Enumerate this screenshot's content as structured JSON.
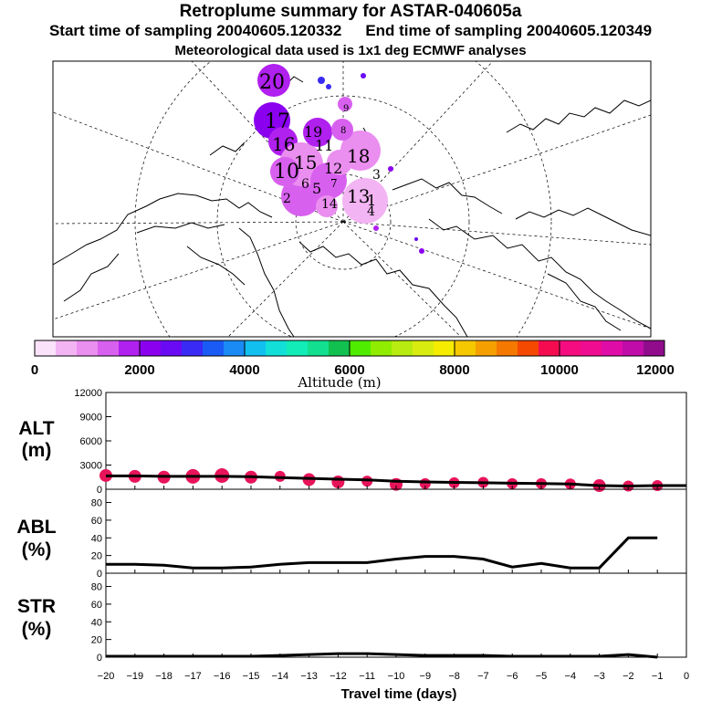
{
  "title": "Retroplume summary for ASTAR-040605a",
  "start_label": "Start time of sampling 20040605.120332",
  "end_label": "End time of sampling 20040605.120349",
  "met_label": "Meteorological data used is 1x1 deg ECMWF analyses",
  "colorbar": {
    "label": "Altitude (m)",
    "ticks": [
      "0",
      "2000",
      "4000",
      "6000",
      "8000",
      "10000",
      "12000"
    ],
    "colors": [
      "#fbe2fb",
      "#f3b4f3",
      "#ea8eef",
      "#d860ef",
      "#b020ef",
      "#8a00ef",
      "#6a0af5",
      "#3a2af5",
      "#1a5af5",
      "#1a8af5",
      "#12c0f0",
      "#12e0d8",
      "#12ecb8",
      "#12e090",
      "#12c050",
      "#50ec00",
      "#90ec00",
      "#b8ec10",
      "#d8ec10",
      "#f5ec00",
      "#f5c800",
      "#f5a000",
      "#f57800",
      "#f54800",
      "#f50c50",
      "#f50c80",
      "#f00c90",
      "#e00ca8",
      "#c00ca8",
      "#900c8c"
    ]
  },
  "map": {
    "plume_labels": [
      "20",
      "17",
      "16",
      "15",
      "10",
      "19",
      "12",
      "11",
      "18",
      "13",
      "14",
      "8",
      "9",
      "7",
      "6",
      "4",
      "3",
      "2",
      "1",
      "5"
    ]
  },
  "x_axis": {
    "title": "Travel time (days)",
    "ticks": [
      "−20",
      "−19",
      "−18",
      "−17",
      "−16",
      "−15",
      "−14",
      "−13",
      "−12",
      "−11",
      "−10",
      "−9",
      "−8",
      "−7",
      "−6",
      "−5",
      "−4",
      "−3",
      "−2",
      "−1",
      "0"
    ]
  },
  "chart_data": [
    {
      "type": "line",
      "title": "ALT (m)",
      "label_top": "ALT",
      "label_bottom": "(m)",
      "xlabel": "Travel time (days)",
      "ylim": [
        0,
        12000
      ],
      "yticks": [
        "0",
        "3000",
        "6000",
        "9000",
        "12000"
      ],
      "x": [
        -20,
        -19,
        -18,
        -17,
        -16,
        -15,
        -14,
        -13,
        -12,
        -11,
        -10,
        -9,
        -8,
        -7,
        -6,
        -5,
        -4,
        -3,
        -2,
        -1,
        0
      ],
      "values": [
        1650,
        1650,
        1600,
        1600,
        1600,
        1550,
        1450,
        1350,
        1250,
        1150,
        1000,
        900,
        850,
        800,
        750,
        700,
        650,
        450,
        400,
        450,
        450
      ],
      "bubbles": [
        {
          "x": -20,
          "y": 1700,
          "r": 7
        },
        {
          "x": -19,
          "y": 1600,
          "r": 7
        },
        {
          "x": -18,
          "y": 1500,
          "r": 7
        },
        {
          "x": -17,
          "y": 1600,
          "r": 8
        },
        {
          "x": -16,
          "y": 1700,
          "r": 8
        },
        {
          "x": -15,
          "y": 1500,
          "r": 7
        },
        {
          "x": -14,
          "y": 1600,
          "r": 6
        },
        {
          "x": -13,
          "y": 1200,
          "r": 7
        },
        {
          "x": -12,
          "y": 900,
          "r": 7
        },
        {
          "x": -11,
          "y": 1000,
          "r": 6
        },
        {
          "x": -10,
          "y": 600,
          "r": 7
        },
        {
          "x": -9,
          "y": 700,
          "r": 6
        },
        {
          "x": -8,
          "y": 800,
          "r": 6
        },
        {
          "x": -7,
          "y": 850,
          "r": 6
        },
        {
          "x": -6,
          "y": 700,
          "r": 6
        },
        {
          "x": -5,
          "y": 700,
          "r": 6
        },
        {
          "x": -4,
          "y": 650,
          "r": 6
        },
        {
          "x": -3,
          "y": 450,
          "r": 7
        },
        {
          "x": -2,
          "y": 400,
          "r": 6
        },
        {
          "x": -1,
          "y": 450,
          "r": 6
        }
      ],
      "bubble_color": "#e8145a"
    },
    {
      "type": "line",
      "title": "ABL (%)",
      "label_top": "ABL",
      "label_bottom": "(%)",
      "xlabel": "Travel time (days)",
      "ylim": [
        0,
        95
      ],
      "yticks": [
        "0",
        "20",
        "40",
        "60",
        "80"
      ],
      "x": [
        -20,
        -19,
        -18,
        -17,
        -16,
        -15,
        -14,
        -13,
        -12,
        -11,
        -10,
        -9,
        -8,
        -7,
        -6,
        -5,
        -4,
        -3,
        -2,
        -1
      ],
      "values": [
        10,
        10,
        9,
        6,
        6,
        7,
        10,
        12,
        12,
        12,
        16,
        19,
        19,
        16,
        7,
        11,
        6,
        6,
        40,
        40
      ]
    },
    {
      "type": "line",
      "title": "STR (%)",
      "label_top": "STR",
      "label_bottom": "(%)",
      "xlabel": "Travel time (days)",
      "ylim": [
        0,
        95
      ],
      "yticks": [
        "0",
        "20",
        "40",
        "60",
        "80"
      ],
      "x": [
        -20,
        -19,
        -18,
        -17,
        -16,
        -15,
        -14,
        -13,
        -12,
        -11,
        -10,
        -9,
        -8,
        -7,
        -6,
        -5,
        -4,
        -3,
        -2,
        -1
      ],
      "values": [
        1,
        1,
        1,
        1,
        1,
        1,
        2,
        3,
        4,
        4,
        3,
        2,
        2,
        2,
        1,
        1,
        1,
        1,
        3,
        0
      ]
    }
  ]
}
